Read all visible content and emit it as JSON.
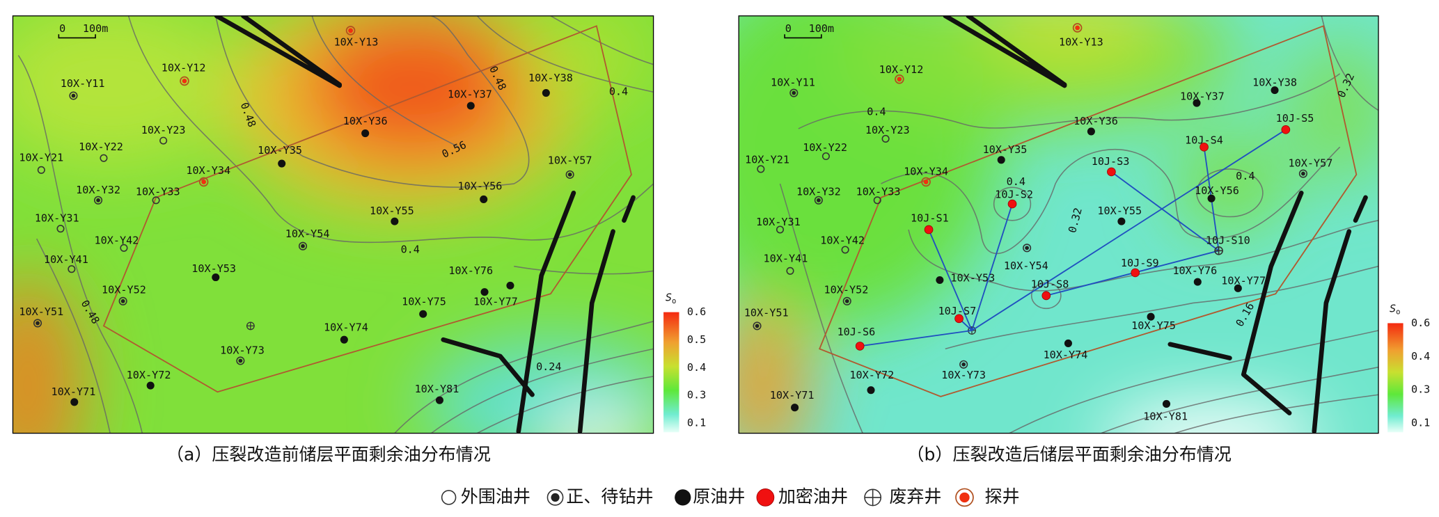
{
  "panels": [
    {
      "caption": "（a）压裂改造前储层平面剩余油分布情况",
      "scale": {
        "zero": "0",
        "length": "100m"
      },
      "colorbar": {
        "symbol": "S",
        "subscript": "o",
        "ticks": [
          0.6,
          0.5,
          0.4,
          0.3,
          0.1
        ]
      },
      "contour_labels": [
        0.48,
        0.48,
        0.4,
        0.56,
        0.4,
        0.48,
        0.24
      ],
      "wells": [
        {
          "label": "10X-Y13",
          "type": "exploration"
        },
        {
          "label": "10X-Y12",
          "type": "exploration"
        },
        {
          "label": "10X-Y11",
          "type": "ring"
        },
        {
          "label": "10X-Y23",
          "type": "outer"
        },
        {
          "label": "10X-Y22",
          "type": "outer"
        },
        {
          "label": "10X-Y21",
          "type": "outer"
        },
        {
          "label": "10X-Y34",
          "type": "exploration"
        },
        {
          "label": "10X-Y32",
          "type": "ring"
        },
        {
          "label": "10X-Y33",
          "type": "outer"
        },
        {
          "label": "10X-Y35",
          "type": "original"
        },
        {
          "label": "10X-Y36",
          "type": "original"
        },
        {
          "label": "10X-Y37",
          "type": "original"
        },
        {
          "label": "10X-Y38",
          "type": "original"
        },
        {
          "label": "10X-Y57",
          "type": "ring"
        },
        {
          "label": "10X-Y56",
          "type": "original"
        },
        {
          "label": "10X-Y55",
          "type": "original"
        },
        {
          "label": "10X-Y54",
          "type": "ring"
        },
        {
          "label": "10X-Y31",
          "type": "outer"
        },
        {
          "label": "10X-Y42",
          "type": "outer"
        },
        {
          "label": "10X-Y41",
          "type": "outer"
        },
        {
          "label": "10X-Y53",
          "type": "original"
        },
        {
          "label": "10X-Y52",
          "type": "ring"
        },
        {
          "label": "10X-Y51",
          "type": "ring"
        },
        {
          "label": "10X-Y76",
          "type": "original"
        },
        {
          "label": "10X-Y77",
          "type": "original"
        },
        {
          "label": "10X-Y75",
          "type": "original"
        },
        {
          "label": "10X-Y74",
          "type": "original"
        },
        {
          "label": "10X-Y73",
          "type": "ring"
        },
        {
          "label": "10X-Y72",
          "type": "original"
        },
        {
          "label": "10X-Y71",
          "type": "original"
        },
        {
          "label": "10X-Y81",
          "type": "original"
        }
      ]
    },
    {
      "caption": "（b）压裂改造后储层平面剩余油分布情况",
      "scale": {
        "zero": "0",
        "length": "100m"
      },
      "colorbar": {
        "symbol": "S",
        "subscript": "o",
        "ticks": [
          0.6,
          0.4,
          0.3,
          0.1
        ]
      },
      "contour_labels": [
        0.4,
        0.32,
        0.4,
        0.4,
        0.32,
        0.16
      ],
      "wells": [
        {
          "label": "10X-Y13",
          "type": "exploration"
        },
        {
          "label": "10X-Y12",
          "type": "exploration"
        },
        {
          "label": "10X-Y11",
          "type": "ring"
        },
        {
          "label": "10X-Y23",
          "type": "outer"
        },
        {
          "label": "10X-Y22",
          "type": "outer"
        },
        {
          "label": "10X-Y21",
          "type": "outer"
        },
        {
          "label": "10X-Y34",
          "type": "exploration"
        },
        {
          "label": "10X-Y32",
          "type": "ring"
        },
        {
          "label": "10X-Y33",
          "type": "outer"
        },
        {
          "label": "10X-Y35",
          "type": "original"
        },
        {
          "label": "10X-Y36",
          "type": "original"
        },
        {
          "label": "10X-Y37",
          "type": "original"
        },
        {
          "label": "10X-Y38",
          "type": "original"
        },
        {
          "label": "10X-Y57",
          "type": "ring"
        },
        {
          "label": "10X-Y56",
          "type": "original"
        },
        {
          "label": "10X-Y55",
          "type": "original"
        },
        {
          "label": "10X-Y54",
          "type": "ring"
        },
        {
          "label": "10X-Y31",
          "type": "outer"
        },
        {
          "label": "10X-Y42",
          "type": "outer"
        },
        {
          "label": "10X-Y41",
          "type": "outer"
        },
        {
          "label": "10X-Y53",
          "type": "original"
        },
        {
          "label": "10X-Y52",
          "type": "ring"
        },
        {
          "label": "10X-Y51",
          "type": "ring"
        },
        {
          "label": "10X-Y76",
          "type": "original"
        },
        {
          "label": "10X-Y77",
          "type": "original"
        },
        {
          "label": "10X-Y75",
          "type": "original"
        },
        {
          "label": "10X-Y74",
          "type": "original"
        },
        {
          "label": "10X-Y73",
          "type": "ring"
        },
        {
          "label": "10X-Y72",
          "type": "original"
        },
        {
          "label": "10X-Y71",
          "type": "original"
        },
        {
          "label": "10X-Y81",
          "type": "original"
        },
        {
          "label": "10J-S1",
          "type": "infill"
        },
        {
          "label": "10J-S2",
          "type": "infill"
        },
        {
          "label": "10J-S3",
          "type": "infill"
        },
        {
          "label": "10J-S4",
          "type": "infill"
        },
        {
          "label": "10J-S5",
          "type": "infill"
        },
        {
          "label": "10J-S6",
          "type": "infill"
        },
        {
          "label": "10J-S7",
          "type": "infill"
        },
        {
          "label": "10J-S8",
          "type": "infill"
        },
        {
          "label": "10J-S9",
          "type": "infill"
        },
        {
          "label": "10J-S10",
          "type": "abandoned"
        }
      ]
    }
  ],
  "legend": [
    {
      "label": "外围油井",
      "type": "outer"
    },
    {
      "label": "正、待钻井",
      "type": "ring"
    },
    {
      "label": "原油井",
      "type": "original"
    },
    {
      "label": "加密油井",
      "type": "infill"
    },
    {
      "label": "废弃井",
      "type": "abandoned"
    },
    {
      "label": "探井",
      "type": "exploration"
    }
  ]
}
